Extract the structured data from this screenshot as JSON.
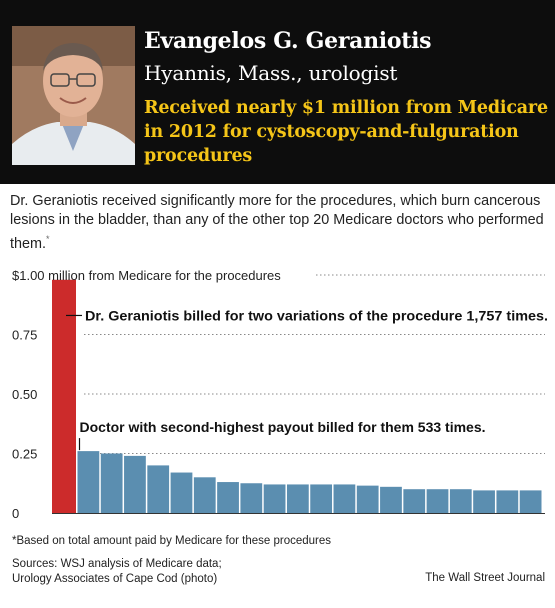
{
  "header": {
    "name": "Evangelos G. Geraniotis",
    "subtitle": "Hyannis, Mass., urologist",
    "headline": "Received nearly $1 million from Medicare in 2012 for cystoscopy-and-fulguration procedures",
    "background_color": "#0d0d0d",
    "headline_color": "#f5c518"
  },
  "intro": {
    "text": "Dr. Geraniotis received significantly more for the procedures, which burn cancerous lesions in the bladder, than any of the other top 20 Medicare doctors who performed them.",
    "footnote_mark": "*"
  },
  "chart_data": {
    "type": "bar",
    "title": "$1.00 million from Medicare for the procedures",
    "ylabel": "million from Medicare for the procedures",
    "ylim": [
      0,
      1.0
    ],
    "yticks": [
      0,
      0.25,
      0.5,
      0.75,
      1.0
    ],
    "ytick_labels": [
      "0",
      "0.25",
      "0.50",
      "0.75",
      "$1.00"
    ],
    "grid": true,
    "values": [
      0.98,
      0.26,
      0.25,
      0.24,
      0.2,
      0.17,
      0.15,
      0.13,
      0.125,
      0.12,
      0.12,
      0.12,
      0.12,
      0.115,
      0.11,
      0.1,
      0.1,
      0.1,
      0.095,
      0.095,
      0.095
    ],
    "highlight_index": 0,
    "colors": {
      "highlight": "#cc2b2b",
      "bars": "#5b8eb0",
      "grid": "#888888"
    },
    "annotations": [
      {
        "text": "Dr. Geraniotis billed for two variations of the procedure 1,757 times.",
        "target_index": 0,
        "value": 0.83
      },
      {
        "text": "Doctor with second-highest payout billed for them 533 times.",
        "target_index": 1,
        "value": 0.34
      }
    ]
  },
  "footer": {
    "footnote": "*Based on total amount paid by Medicare for these procedures",
    "sources_line1": "Sources: WSJ analysis of Medicare data;",
    "sources_line2": "Urology Associates of Cape Cod (photo)",
    "credit": "The Wall Street Journal"
  }
}
